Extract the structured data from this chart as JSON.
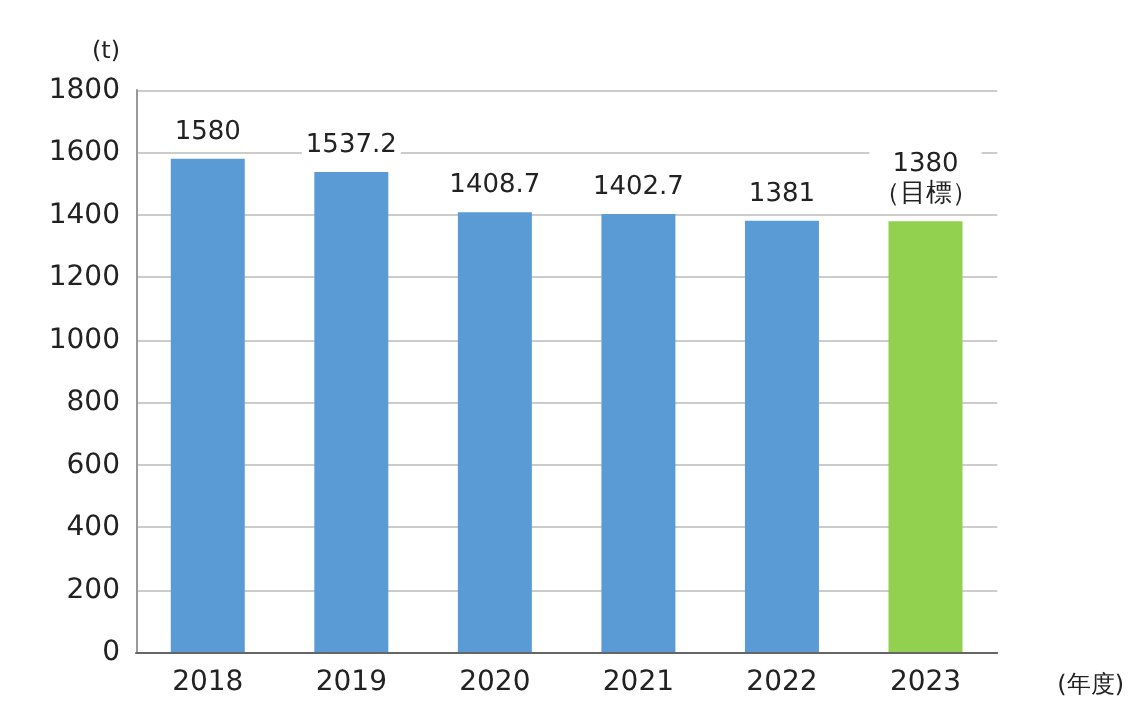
{
  "chart_data": {
    "type": "bar",
    "categories": [
      "2018",
      "2019",
      "2020",
      "2021",
      "2022",
      "2023"
    ],
    "values": [
      1580,
      1537.2,
      1408.7,
      1402.7,
      1381,
      1380
    ],
    "colors": [
      "#5b9bd5",
      "#5b9bd5",
      "#5b9bd5",
      "#5b9bd5",
      "#5b9bd5",
      "#92d050"
    ],
    "value_labels": [
      "1580",
      "1537.2",
      "1408.7",
      "1402.7",
      "1381",
      "1380\n（目標）"
    ],
    "ylabel": "(t)",
    "xlabel": "(年度)",
    "ylim": [
      0,
      1800
    ],
    "yticks": [
      0,
      200,
      400,
      600,
      800,
      1000,
      1200,
      1400,
      1600,
      1800
    ],
    "grid": "y"
  }
}
